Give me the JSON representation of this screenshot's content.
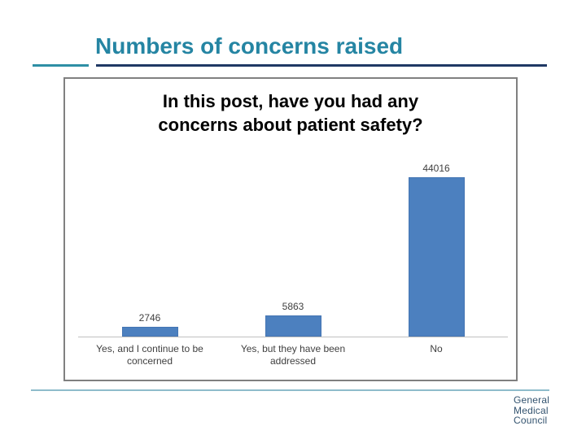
{
  "slide": {
    "title": "Numbers of concerns raised",
    "footer_logo": {
      "lines": [
        "General",
        "Medical",
        "Council"
      ]
    }
  },
  "chart": {
    "title_lines": [
      "In this post, have you had any",
      "concerns about patient safety?"
    ]
  },
  "chart_data": {
    "type": "bar",
    "title": "In this post, have you had any concerns about patient safety?",
    "categories": [
      "Yes, and I continue to be concerned",
      "Yes, but they have been addressed",
      "No"
    ],
    "values": [
      2746,
      5863,
      44016
    ],
    "xlabel": "",
    "ylabel": "",
    "ylim": [
      0,
      45000
    ],
    "grid": false,
    "legend": false,
    "bar_color": "#4C80BF",
    "data_labels_shown": true
  },
  "colors": {
    "title_teal": "#2585A3",
    "header_rule_navy": "#1F3864",
    "header_rule_teal": "#2E8FA5",
    "footer_rule_teal": "#8FBCCB",
    "logo_navy": "#33536F",
    "chart_border_gray": "#808080",
    "axis_gray": "#C0C0C0"
  }
}
